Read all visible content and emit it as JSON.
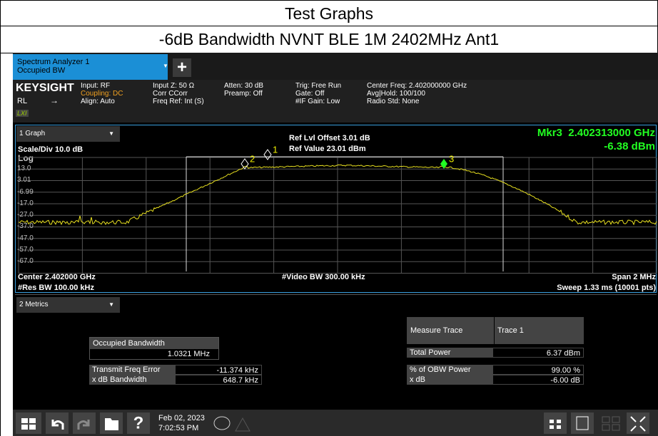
{
  "header": {
    "title": "Test Graphs",
    "subtitle": "-6dB Bandwidth NVNT BLE 1M 2402MHz Ant1"
  },
  "tab": {
    "line1": "Spectrum Analyzer 1",
    "line2": "Occupied BW",
    "add": "+"
  },
  "status": {
    "brand": "KEYSIGHT",
    "mode": "RL",
    "lxi": "LXI",
    "columns": [
      [
        "Input: RF",
        "Coupling: DC",
        "Align: Auto"
      ],
      [
        "Input Z: 50 Ω",
        "Corr CCorr",
        "Freq Ref: Int (S)"
      ],
      [
        "Atten: 30 dB",
        "Preamp: Off"
      ],
      [
        "Trig: Free Run",
        "Gate: Off",
        "#IF Gain: Low"
      ],
      [
        "Center Freq: 2.402000000 GHz",
        "Avg|Hold: 100/100",
        "Radio Std: None"
      ]
    ]
  },
  "graph": {
    "window": "1 Graph",
    "ref_offset": "Ref Lvl Offset 3.01 dB",
    "ref_value": "Ref Value 23.01 dBm",
    "marker_freq": "Mkr3  2.402313000 GHz",
    "marker_level": "-6.38 dBm",
    "scale": "Scale/Div 10.0 dB",
    "log": "Log",
    "y_labels": [
      "13.0",
      "3.01",
      "-6.99",
      "-17.0",
      "-27.0",
      "-37.0",
      "-47.0",
      "-57.0",
      "-67.0"
    ],
    "markers": [
      "1",
      "2",
      "3"
    ],
    "center": "Center 2.402000 GHz",
    "video_bw": "#Video BW 300.00 kHz",
    "span": "Span 2 MHz",
    "res_bw": "#Res BW 100.00 kHz",
    "sweep": "Sweep 1.33 ms (10001 pts)"
  },
  "metrics": {
    "window": "2 Metrics",
    "obw_label": "Occupied Bandwidth",
    "obw_value": "1.0321 MHz",
    "left_rows": [
      [
        "Transmit Freq Error",
        "-11.374 kHz"
      ],
      [
        "x dB Bandwidth",
        "648.7 kHz"
      ]
    ],
    "trace_label": "Measure Trace",
    "trace_value": "Trace 1",
    "right_rows": [
      [
        "Total Power",
        "6.37 dBm"
      ],
      [
        "% of OBW Power",
        "99.00 %"
      ],
      [
        "x dB",
        "-6.00 dB"
      ]
    ]
  },
  "taskbar": {
    "help": "?",
    "date": "Feb 02, 2023",
    "time": "7:02:53 PM"
  }
}
